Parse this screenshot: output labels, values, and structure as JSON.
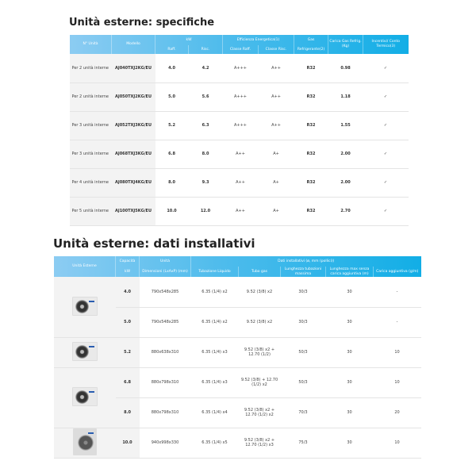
{
  "spec": {
    "title": "Unità esterne: specifiche",
    "headers": {
      "units": "N° Unità",
      "model": "Modello",
      "kw": "kW",
      "kw_cool": "Raff.",
      "kw_heat": "Risc.",
      "eff": "Efficienza Energetica(1)",
      "eff_cool": "Classe Raff.",
      "eff_heat": "Classe Risc.",
      "gas": "Gas",
      "gas_sub": "Refrigerante(2)",
      "charge": "Carica Gas Refrig. (Kg)",
      "incent": "Incentivi/ Conto Termico(3)"
    },
    "rows": [
      {
        "units": "Per 2 unità interne",
        "model": "AJ040TXJ2KG/EU",
        "cool": "4.0",
        "heat": "4.2",
        "ec": "A+++",
        "eh": "A++",
        "gas": "R32",
        "charge": "0.98",
        "inc": "✓"
      },
      {
        "units": "Per 2 unità interne",
        "model": "AJ050TXJ2KG/EU",
        "cool": "5.0",
        "heat": "5.6",
        "ec": "A+++",
        "eh": "A++",
        "gas": "R32",
        "charge": "1.18",
        "inc": "✓"
      },
      {
        "units": "Per 3 unità interne",
        "model": "AJ052TXJ3KG/EU",
        "cool": "5.2",
        "heat": "6.3",
        "ec": "A+++",
        "eh": "A++",
        "gas": "R32",
        "charge": "1.55",
        "inc": "✓"
      },
      {
        "units": "Per 3 unità interne",
        "model": "AJ068TXJ3KG/EU",
        "cool": "6.8",
        "heat": "8.0",
        "ec": "A++",
        "eh": "A+",
        "gas": "R32",
        "charge": "2.00",
        "inc": "✓"
      },
      {
        "units": "Per 4 unità interne",
        "model": "AJ080TXJ4KG/EU",
        "cool": "8.0",
        "heat": "9.3",
        "ec": "A++",
        "eh": "A+",
        "gas": "R32",
        "charge": "2.00",
        "inc": "✓"
      },
      {
        "units": "Per 5 unità interne",
        "model": "AJ100TXJ5KG/EU",
        "cool": "10.0",
        "heat": "12.0",
        "ec": "A++",
        "eh": "A+",
        "gas": "R32",
        "charge": "2.70",
        "inc": "✓"
      }
    ]
  },
  "install": {
    "title": "Unità esterne: dati installativi",
    "headers": {
      "unit": "Unità Esterne",
      "cap": "Capacità",
      "cap_sub": "kW",
      "dim": "Unità",
      "dim_sub": "Dimensioni (LxAxP) (mm)",
      "data": "Dati installativi (ø, mm (pollici))",
      "liq": "Tubazione Liquido",
      "gas": "Tubo gas",
      "len": "Lunghezza tubazioni massima",
      "lenmax": "Lunghezza max senza carica aggiuntiva (m)",
      "add": "Carica aggiuntiva (g/m)"
    },
    "rows": [
      {
        "cap": "4.0",
        "dim": "790x548x285",
        "liq": "6.35 (1/4) x2",
        "gas": "9.52 (3/8) x2",
        "len": "30/3",
        "lenmax": "30",
        "add": "-"
      },
      {
        "cap": "5.0",
        "dim": "790x548x285",
        "liq": "6.35 (1/4) x2",
        "gas": "9.52 (3/8) x2",
        "len": "30/3",
        "lenmax": "30",
        "add": "-"
      },
      {
        "cap": "5.2",
        "dim": "880x638x310",
        "liq": "6.35 (1/4) x3",
        "gas": "9.52 (3/8) x2 + 12.70 (1/2)",
        "len": "50/3",
        "lenmax": "30",
        "add": "10"
      },
      {
        "cap": "6.8",
        "dim": "880x798x310",
        "liq": "6.35 (1/4) x3",
        "gas": "9.52 (3/8) + 12.70 (1/2) x2",
        "len": "50/3",
        "lenmax": "30",
        "add": "10"
      },
      {
        "cap": "8.0",
        "dim": "880x798x310",
        "liq": "6.35 (1/4) x4",
        "gas": "9.52 (3/8) x2 + 12.70 (1/2) x2",
        "len": "70/3",
        "lenmax": "30",
        "add": "20"
      },
      {
        "cap": "10.0",
        "dim": "940x998x330",
        "liq": "6.35 (1/4) x5",
        "gas": "9.52 (3/8) x2 + 12.70 (1/2) x3",
        "len": "75/3",
        "lenmax": "30",
        "add": "10"
      }
    ]
  }
}
